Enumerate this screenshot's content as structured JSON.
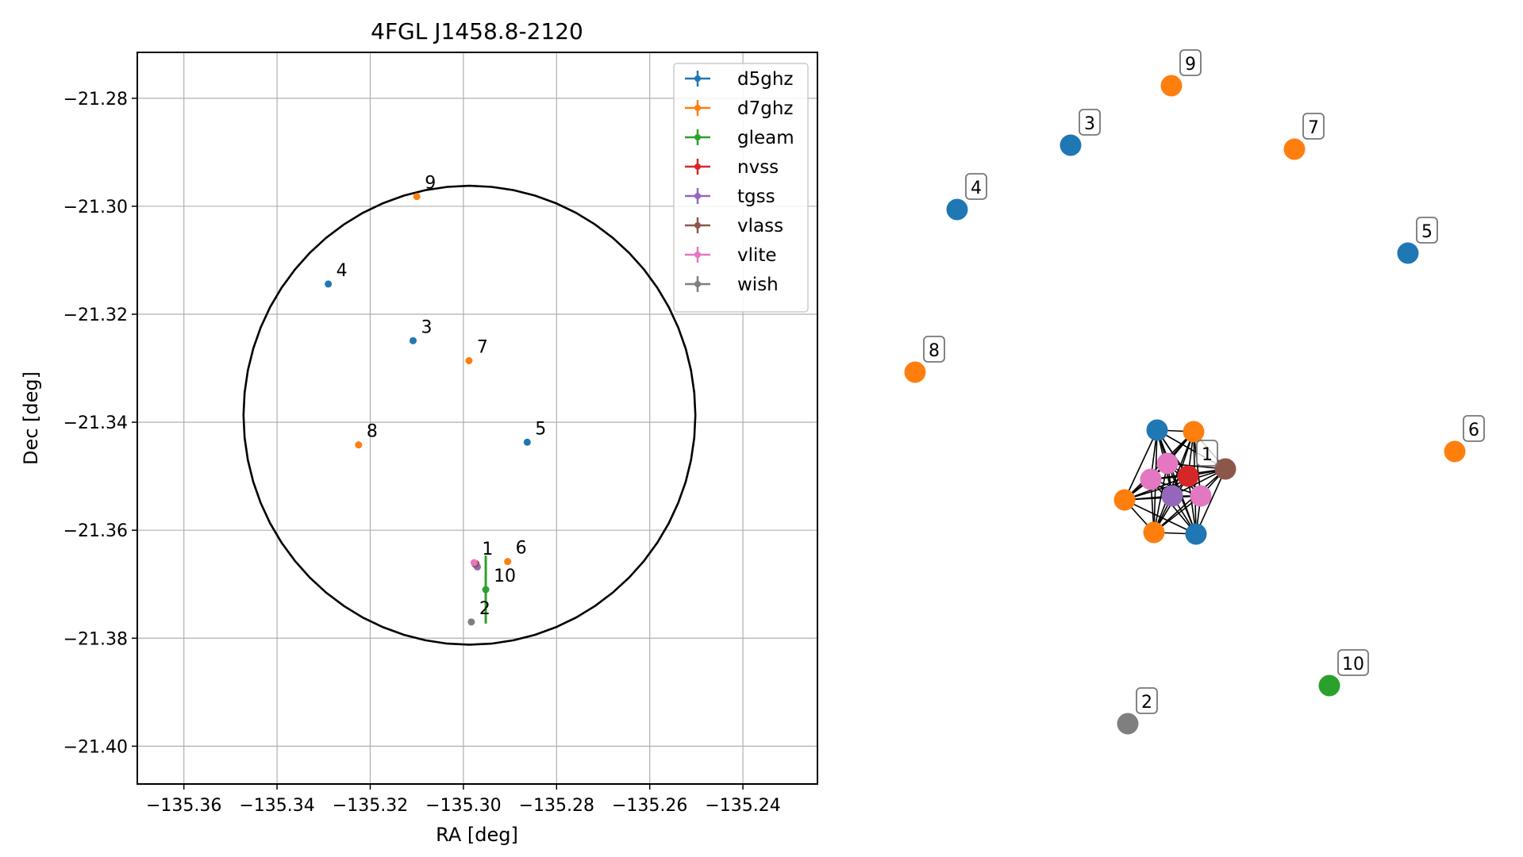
{
  "chart_data": [
    {
      "type": "scatter",
      "title": "4FGL J1458.8-2120",
      "xlabel": "RA [deg]",
      "ylabel": "Dec [deg]",
      "xlim": [
        -135.37,
        -135.224
      ],
      "ylim": [
        -21.407,
        -21.2715
      ],
      "xticks": [
        -135.36,
        -135.34,
        -135.32,
        -135.3,
        -135.28,
        -135.26,
        -135.24
      ],
      "xtick_labels": [
        "−135.36",
        "−135.34",
        "−135.32",
        "−135.30",
        "−135.28",
        "−135.26",
        "−135.24"
      ],
      "yticks": [
        -21.28,
        -21.3,
        -21.32,
        -21.34,
        -21.36,
        -21.38,
        -21.4
      ],
      "ytick_labels": [
        "−21.28",
        "−21.30",
        "−21.32",
        "−21.34",
        "−21.36",
        "−21.38",
        "−21.40"
      ],
      "grid": true,
      "legend_position": "top-right",
      "circle": {
        "center_ra": -135.2987,
        "center_dec": -21.3387,
        "radius_ra": 0.0485,
        "radius_dec": 0.0425
      },
      "series": [
        {
          "name": "d5ghz",
          "color": "#1f77b4",
          "points": [
            {
              "ra": -135.2863,
              "dec": -21.3437,
              "label": "5"
            },
            {
              "ra": -135.3108,
              "dec": -21.3249,
              "label": "3"
            },
            {
              "ra": -135.329,
              "dec": -21.3144,
              "label": "4"
            }
          ]
        },
        {
          "name": "d7ghz",
          "color": "#ff7f0e",
          "points": [
            {
              "ra": -135.31,
              "dec": -21.2982,
              "label": "9"
            },
            {
              "ra": -135.2988,
              "dec": -21.3286,
              "label": "7"
            },
            {
              "ra": -135.3225,
              "dec": -21.3442,
              "label": "8"
            },
            {
              "ra": -135.2905,
              "dec": -21.3658,
              "label": "6"
            }
          ]
        },
        {
          "name": "gleam",
          "color": "#2ca02c",
          "points": [
            {
              "ra": -135.2952,
              "dec": -21.371,
              "label": "10",
              "dec_err": 0.0063
            }
          ]
        },
        {
          "name": "nvss",
          "color": "#d62728",
          "points": [
            {
              "ra": -135.2973,
              "dec": -21.3662,
              "label": ""
            }
          ]
        },
        {
          "name": "tgss",
          "color": "#9467bd",
          "points": [
            {
              "ra": -135.297,
              "dec": -21.3668,
              "label": ""
            }
          ]
        },
        {
          "name": "vlass",
          "color": "#8c564b",
          "points": [
            {
              "ra": -135.2975,
              "dec": -21.3663,
              "label": ""
            }
          ]
        },
        {
          "name": "vlite",
          "color": "#e377c2",
          "points": [
            {
              "ra": -135.2977,
              "dec": -21.366,
              "label": "1"
            }
          ]
        },
        {
          "name": "wish",
          "color": "#7f7f7f",
          "points": [
            {
              "ra": -135.2983,
              "dec": -21.377,
              "label": "2"
            }
          ]
        }
      ]
    },
    {
      "type": "network",
      "nodes": [
        {
          "label": "9",
          "color": "#ff7f0e"
        },
        {
          "label": "3",
          "color": "#1f77b4"
        },
        {
          "label": "7",
          "color": "#ff7f0e"
        },
        {
          "label": "4",
          "color": "#1f77b4"
        },
        {
          "label": "5",
          "color": "#1f77b4"
        },
        {
          "label": "8",
          "color": "#ff7f0e"
        },
        {
          "label": "6",
          "color": "#ff7f0e"
        },
        {
          "label": "10",
          "color": "#2ca02c"
        },
        {
          "label": "2",
          "color": "#7f7f7f"
        },
        {
          "label": "1",
          "color": "#d62728"
        },
        {
          "label": "",
          "color": "#1f77b4"
        },
        {
          "label": "",
          "color": "#ff7f0e"
        },
        {
          "label": "",
          "color": "#e377c2"
        },
        {
          "label": "",
          "color": "#8c564b"
        },
        {
          "label": "",
          "color": "#e377c2"
        },
        {
          "label": "",
          "color": "#ff7f0e"
        },
        {
          "label": "",
          "color": "#9467bd"
        },
        {
          "label": "",
          "color": "#e377c2"
        },
        {
          "label": "",
          "color": "#ff7f0e"
        },
        {
          "label": "",
          "color": "#1f77b4"
        }
      ]
    }
  ]
}
